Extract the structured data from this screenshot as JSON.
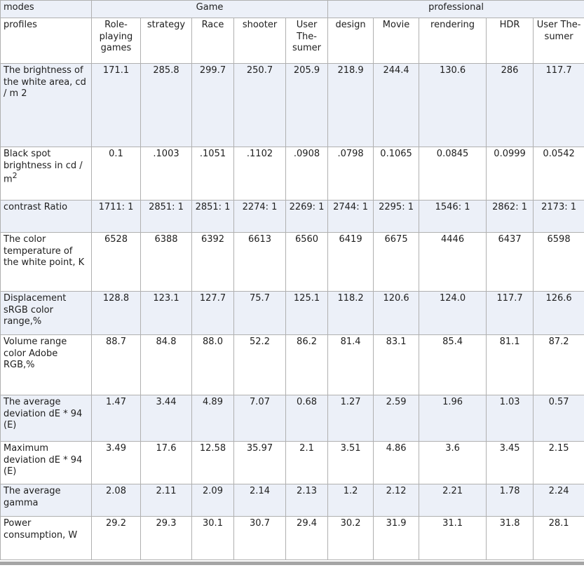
{
  "corner": {
    "modes": "modes",
    "profiles": "profiles"
  },
  "groups": [
    {
      "label": "Game",
      "span": 5
    },
    {
      "label": "professional",
      "span": 5
    }
  ],
  "profile_columns": [
    "Role-playing games",
    "strategy",
    "Race",
    "shooter",
    "User The-sumer",
    "design",
    "Movie",
    "rendering",
    "HDR",
    "User The-sumer"
  ],
  "rows": [
    {
      "label": "The brightness of the white area, cd / m 2",
      "sup": "",
      "values": [
        "171.1",
        "285.8",
        "299.7",
        "250.7",
        "205.9",
        "218.9",
        "244.4",
        "130.6",
        "286",
        "117.7"
      ]
    },
    {
      "label": "Black spot brightness in cd / m",
      "sup": "2",
      "values": [
        "0.1",
        ".1003",
        ".1051",
        ".1102",
        ".0908",
        ".0798",
        "0.1065",
        "0.0845",
        "0.0999",
        "0.0542"
      ]
    },
    {
      "label": "contrast Ratio",
      "sup": "",
      "values": [
        "1711: 1",
        "2851: 1",
        "2851: 1",
        "2274: 1",
        "2269: 1",
        "2744: 1",
        "2295: 1",
        "1546: 1",
        "2862: 1",
        "2173: 1"
      ]
    },
    {
      "label": "The color temperature of the white point, K",
      "sup": "",
      "values": [
        "6528",
        "6388",
        "6392",
        "6613",
        "6560",
        "6419",
        "6675",
        "4446",
        "6437",
        "6598"
      ]
    },
    {
      "label": "Displacement sRGB color range,%",
      "sup": "",
      "values": [
        "128.8",
        "123.1",
        "127.7",
        "75.7",
        "125.1",
        "118.2",
        "120.6",
        "124.0",
        "117.7",
        "126.6"
      ]
    },
    {
      "label": "Volume range color Adobe RGB,%",
      "sup": "",
      "values": [
        "88.7",
        "84.8",
        "88.0",
        "52.2",
        "86.2",
        "81.4",
        "83.1",
        "85.4",
        "81.1",
        "87.2"
      ]
    },
    {
      "label": "The average deviation dE * 94 (E)",
      "sup": "",
      "values": [
        "1.47",
        "3.44",
        "4.89",
        "7.07",
        "0.68",
        "1.27",
        "2.59",
        "1.96",
        "1.03",
        "0.57"
      ]
    },
    {
      "label": "Maximum deviation dE * 94 (E)",
      "sup": "",
      "values": [
        "3.49",
        "17.6",
        "12.58",
        "35.97",
        "2.1",
        "3.51",
        "4.86",
        "3.6",
        "3.45",
        "2.15"
      ]
    },
    {
      "label": "The average gamma",
      "sup": "",
      "values": [
        "2.08",
        "2.11",
        "2.09",
        "2.14",
        "2.13",
        "1.2",
        "2.12",
        "2.21",
        "1.78",
        "2.24"
      ]
    },
    {
      "label": "Power consumption, W",
      "sup": "",
      "values": [
        "29.2",
        "29.3",
        "30.1",
        "30.7",
        "29.4",
        "30.2",
        "31.9",
        "31.1",
        "31.8",
        "28.1"
      ]
    }
  ],
  "colors": {
    "stripe_background": "#ecf0f8",
    "cell_border": "#b0b0b0",
    "text": "#202020",
    "bottom_bar": "#a5a5a5"
  }
}
